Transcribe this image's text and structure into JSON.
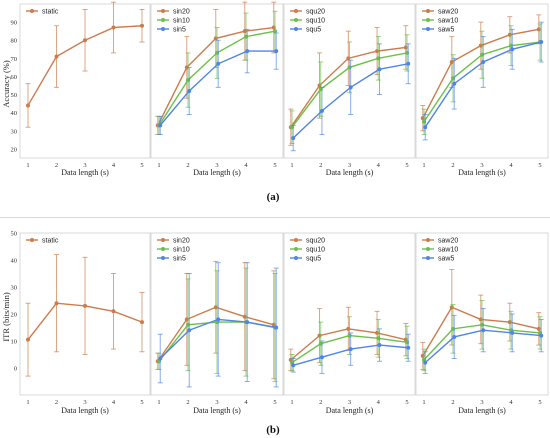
{
  "colors": {
    "s20": "#cd7b4c",
    "s10": "#6cc04a",
    "s5": "#4f86e6"
  },
  "figure": {
    "label_a": "(a)",
    "label_b": "(b)"
  },
  "chart_data": [
    {
      "type": "line",
      "panel": "a",
      "ylabel": "Accuracy (%)",
      "ylim": [
        15,
        100
      ],
      "yticks": [
        20,
        30,
        40,
        50,
        60,
        70,
        80,
        90
      ],
      "x": [
        1,
        2,
        3,
        4,
        5
      ],
      "xlabel": "Data length (s)",
      "subplots": [
        {
          "series": [
            {
              "name": "static",
              "color": "s20",
              "values": [
                44,
                71,
                80,
                87,
                88
              ],
              "errors": [
                12,
                17,
                17,
                14,
                9
              ]
            }
          ]
        },
        {
          "series": [
            {
              "name": "sin20",
              "color": "s20",
              "values": [
                33,
                65,
                81,
                85,
                87
              ],
              "errors": [
                5,
                17,
                16,
                16,
                14
              ]
            },
            {
              "name": "sin10",
              "color": "s10",
              "values": [
                33,
                58,
                73,
                82,
                85
              ],
              "errors": [
                5,
                15,
                14,
                13,
                11
              ]
            },
            {
              "name": "sin5",
              "color": "s5",
              "values": [
                33,
                52,
                67,
                74,
                74
              ],
              "errors": [
                5,
                13,
                13,
                12,
                10
              ]
            }
          ]
        },
        {
          "series": [
            {
              "name": "squ20",
              "color": "s20",
              "values": [
                32,
                55,
                70,
                74,
                76
              ],
              "errors": [
                10,
                18,
                15,
                13,
                12
              ]
            },
            {
              "name": "squ10",
              "color": "s10",
              "values": [
                32,
                53,
                65,
                70,
                73
              ],
              "errors": [
                9,
                15,
                14,
                12,
                10
              ]
            },
            {
              "name": "squ5",
              "color": "s5",
              "values": [
                26,
                41,
                54,
                64,
                67
              ],
              "errors": [
                7,
                13,
                15,
                14,
                11
              ]
            }
          ]
        },
        {
          "series": [
            {
              "name": "saw20",
              "color": "s20",
              "values": [
                37,
                68,
                77,
                83,
                86
              ],
              "errors": [
                7,
                14,
                13,
                10,
                8
              ]
            },
            {
              "name": "saw10",
              "color": "s10",
              "values": [
                35,
                59,
                72,
                77,
                79
              ],
              "errors": [
                7,
                13,
                13,
                11,
                10
              ]
            },
            {
              "name": "saw5",
              "color": "s5",
              "values": [
                32,
                56,
                68,
                75,
                79
              ],
              "errors": [
                7,
                14,
                14,
                11,
                11
              ]
            }
          ]
        }
      ]
    },
    {
      "type": "line",
      "panel": "b",
      "ylabel": "ITR (bits/min)",
      "ylim": [
        -10,
        50
      ],
      "yticks": [
        0,
        10,
        20,
        30,
        40,
        50
      ],
      "x": [
        1,
        2,
        3,
        4,
        5
      ],
      "xlabel": "Data length (s)",
      "subplots": [
        {
          "series": [
            {
              "name": "static",
              "color": "s20",
              "values": [
                10.5,
                24,
                23,
                21,
                17
              ],
              "errors": [
                13.5,
                18,
                18,
                14,
                11
              ]
            }
          ]
        },
        {
          "series": [
            {
              "name": "sin20",
              "color": "s20",
              "values": [
                2.5,
                18,
                22.5,
                19,
                16
              ],
              "errors": [
                3,
                17,
                17,
                20,
                20
              ]
            },
            {
              "name": "sin10",
              "color": "s10",
              "values": [
                2.5,
                16,
                17,
                17,
                15
              ],
              "errors": [
                3,
                17,
                19,
                20,
                20
              ]
            },
            {
              "name": "sin5",
              "color": "s5",
              "values": [
                3.5,
                14,
                18,
                17,
                15
              ],
              "errors": [
                9,
                21,
                21,
                22,
                22
              ]
            }
          ]
        },
        {
          "series": [
            {
              "name": "squ20",
              "color": "s20",
              "values": [
                3,
                12,
                14.5,
                13,
                10.5
              ],
              "errors": [
                4,
                10,
                8,
                8,
                6
              ]
            },
            {
              "name": "squ10",
              "color": "s10",
              "values": [
                2,
                9,
                12,
                11,
                9.5
              ],
              "errors": [
                3,
                8,
                7,
                7,
                6
              ]
            },
            {
              "name": "squ5",
              "color": "s5",
              "values": [
                1,
                4,
                7,
                8.5,
                7.5
              ],
              "errors": [
                2.5,
                6,
                6,
                6,
                5
              ]
            }
          ]
        },
        {
          "series": [
            {
              "name": "saw20",
              "color": "s20",
              "values": [
                4.5,
                22.5,
                18,
                17,
                14.5
              ],
              "errors": [
                5,
                14,
                9,
                7,
                6
              ]
            },
            {
              "name": "saw10",
              "color": "s10",
              "values": [
                3,
                14.5,
                16,
                14,
                13
              ],
              "errors": [
                4,
                9,
                9,
                7,
                6
              ]
            },
            {
              "name": "saw5",
              "color": "s5",
              "values": [
                2,
                11.5,
                14,
                13,
                12
              ],
              "errors": [
                4,
                8,
                8,
                7,
                6
              ]
            }
          ]
        }
      ]
    }
  ]
}
